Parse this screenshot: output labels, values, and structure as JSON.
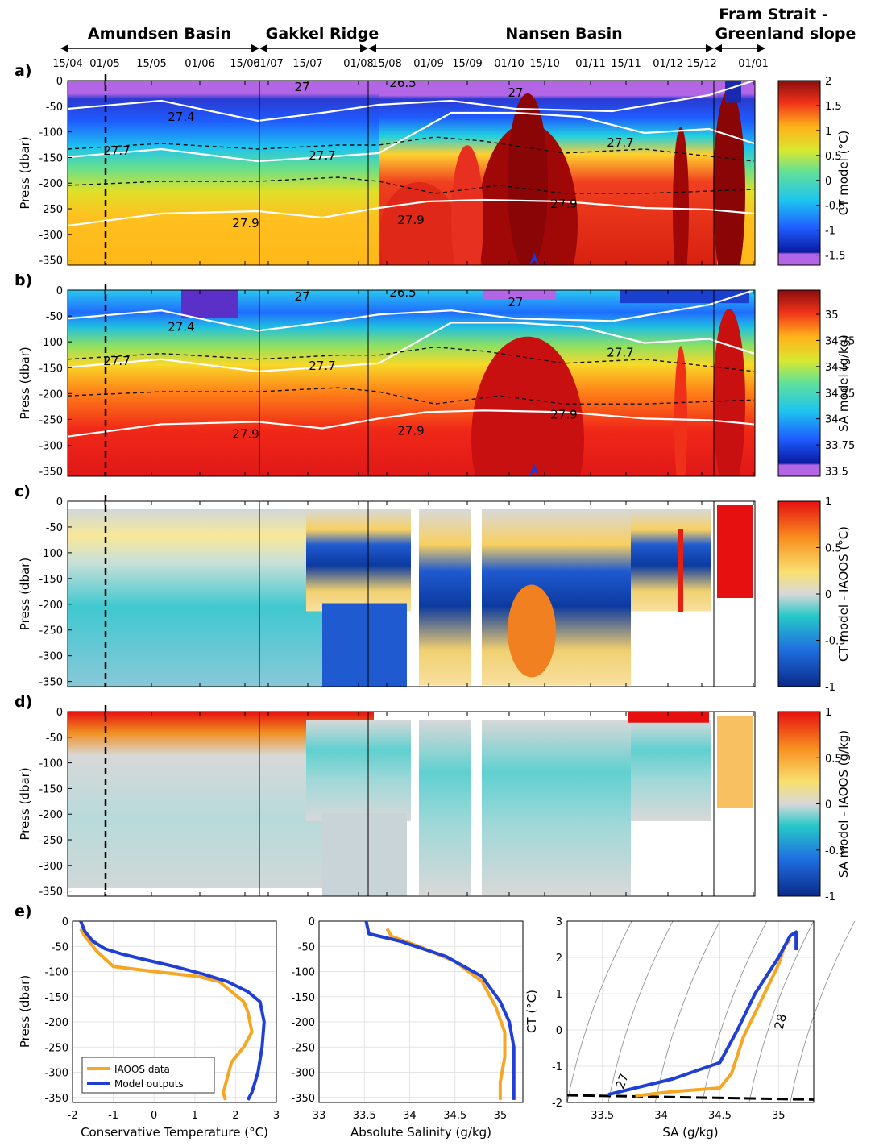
{
  "regions": [
    {
      "label": "Amundsen Basin"
    },
    {
      "label": "Gakkel Ridge"
    },
    {
      "label": "Nansen Basin"
    },
    {
      "label": "Fram Strait -\nGreenland slope"
    }
  ],
  "dates": [
    "15/04",
    "01/05",
    "15/05",
    "01/06",
    "15/06",
    "01/07",
    "15/07",
    "01/08",
    "15/08",
    "01/09",
    "15/09",
    "01/10",
    "15/10",
    "01/11",
    "15/11",
    "01/12",
    "15/12",
    "01/01"
  ],
  "section_yticks": [
    "0",
    "-50",
    "-100",
    "-150",
    "-200",
    "-250",
    "-300",
    "-350"
  ],
  "panels": [
    {
      "letter": "a)",
      "ylabel": "Press (dbar)",
      "cblabel": "CT model (°C)",
      "cbticks": [
        "2",
        "1.5",
        "1",
        "0.5",
        "0",
        "-0.5",
        "-1",
        "-1.5"
      ],
      "scheme": "jet-purple"
    },
    {
      "letter": "b)",
      "ylabel": "Press (dbar)",
      "cblabel": "SA model (g/kg)",
      "cbticks": [
        "35",
        "34.75",
        "34.5",
        "34.25",
        "34",
        "33.75",
        "33.5"
      ],
      "scheme": "jet-purple"
    },
    {
      "letter": "c)",
      "ylabel": "Press (dbar)",
      "cblabel": "CT model - IAOOS (°C)",
      "cbticks": [
        "1",
        "0.5",
        "0",
        "-0.5",
        "-1"
      ],
      "scheme": "diverging"
    },
    {
      "letter": "d)",
      "ylabel": "Press (dbar)",
      "cblabel": "SA model - IAOOS (g/kg)",
      "cbticks": [
        "1",
        "0.5",
        "0",
        "-0.5",
        "-1"
      ],
      "scheme": "diverging"
    }
  ],
  "contour_labels_a": [
    "27",
    "26.5",
    "27.4",
    "27.7",
    "27.9"
  ],
  "contour_labels_b": [
    "27",
    "26.5",
    "27.4",
    "27.7",
    "27.9"
  ],
  "panel_e": {
    "letter": "e)",
    "legend": [
      {
        "name": "IAOOS data",
        "color": "#f5a623"
      },
      {
        "name": "Model outputs",
        "color": "#1f3fd6"
      }
    ],
    "p1": {
      "xlabel": "Conservative Temperature (°C)",
      "ylabel": "Press (dbar)",
      "xticks": [
        "-2",
        "-1",
        "0",
        "1",
        "2",
        "3"
      ],
      "yticks": [
        "0",
        "-50",
        "-100",
        "-150",
        "-200",
        "-250",
        "-300",
        "-350"
      ]
    },
    "p2": {
      "xlabel": "Absolute Salinity (g/kg)",
      "xticks": [
        "33",
        "33.5",
        "34",
        "34.5",
        "35"
      ],
      "yticks": [
        "0",
        "-50",
        "-100",
        "-150",
        "-200",
        "-250",
        "-300",
        "-350"
      ]
    },
    "p3": {
      "xlabel": "SA (g/kg)",
      "ylabel": "CT (°C)",
      "xticks": [
        "33.5",
        "34",
        "34.5",
        "35"
      ],
      "yticks": [
        "3",
        "2",
        "1",
        "0",
        "-1",
        "-2"
      ],
      "isopycnal_labels": [
        "27",
        "28"
      ]
    }
  },
  "chart_data": [
    {
      "type": "heatmap",
      "title": "",
      "ylabel": "Press (dbar)",
      "colorbar_label": "CT model (°C)",
      "zlim": [
        -1.75,
        2
      ],
      "ylim": [
        -360,
        0
      ],
      "x": [
        "15/04",
        "01/05",
        "15/05",
        "01/06",
        "15/06",
        "01/07",
        "15/07",
        "01/08",
        "15/08",
        "01/09",
        "15/09",
        "01/10",
        "15/10",
        "01/11",
        "15/11",
        "01/12",
        "15/12",
        "01/01"
      ]
    },
    {
      "type": "heatmap",
      "title": "",
      "ylabel": "Press (dbar)",
      "colorbar_label": "SA model (g/kg)",
      "zlim": [
        33.4,
        35.2
      ],
      "ylim": [
        -360,
        0
      ]
    },
    {
      "type": "heatmap",
      "title": "",
      "ylabel": "Press (dbar)",
      "colorbar_label": "CT model - IAOOS (°C)",
      "zlim": [
        -1,
        1
      ],
      "ylim": [
        -360,
        0
      ]
    },
    {
      "type": "heatmap",
      "title": "",
      "ylabel": "Press (dbar)",
      "colorbar_label": "SA model - IAOOS (g/kg)",
      "zlim": [
        -1,
        1
      ],
      "ylim": [
        -360,
        0
      ]
    },
    {
      "type": "line",
      "xlabel": "Conservative Temperature (°C)",
      "ylabel": "Press (dbar)",
      "xlim": [
        -2,
        3
      ],
      "ylim": [
        -360,
        0
      ],
      "series": [
        {
          "name": "IAOOS data",
          "x": [
            -1.8,
            -1.7,
            -1.55,
            -1.4,
            -1.2,
            -1.0,
            0.0,
            1.1,
            1.6,
            1.9,
            2.2,
            2.3,
            2.4,
            2.2,
            1.9,
            1.8,
            1.7,
            1.75
          ],
          "y": [
            -15,
            -30,
            -45,
            -60,
            -75,
            -90,
            -100,
            -110,
            -120,
            -140,
            -160,
            -180,
            -220,
            -250,
            -280,
            -310,
            -340,
            -355
          ]
        },
        {
          "name": "Model outputs",
          "x": [
            -1.8,
            -1.7,
            -1.5,
            -1.2,
            -0.8,
            -0.3,
            0.5,
            1.2,
            1.8,
            2.3,
            2.6,
            2.7,
            2.65,
            2.55,
            2.4,
            2.3
          ],
          "y": [
            0,
            -20,
            -40,
            -55,
            -65,
            -75,
            -90,
            -105,
            -120,
            -140,
            -160,
            -200,
            -250,
            -300,
            -340,
            -355
          ]
        }
      ]
    },
    {
      "type": "line",
      "xlabel": "Absolute Salinity (g/kg)",
      "xlim": [
        33,
        35.25
      ],
      "ylim": [
        -360,
        0
      ],
      "series": [
        {
          "name": "IAOOS data",
          "x": [
            33.75,
            33.8,
            34.1,
            34.5,
            34.8,
            34.95,
            35.05,
            35.05,
            35.0,
            35.0
          ],
          "y": [
            -15,
            -30,
            -50,
            -80,
            -120,
            -170,
            -220,
            -270,
            -320,
            -355
          ]
        },
        {
          "name": "Model outputs",
          "x": [
            33.52,
            33.55,
            33.9,
            34.4,
            34.8,
            35.0,
            35.1,
            35.15,
            35.15,
            35.15
          ],
          "y": [
            0,
            -25,
            -40,
            -70,
            -110,
            -160,
            -200,
            -250,
            -300,
            -355
          ]
        }
      ]
    },
    {
      "type": "scatter",
      "xlabel": "SA (g/kg)",
      "ylabel": "CT (°C)",
      "xlim": [
        33.2,
        35.3
      ],
      "ylim": [
        -2,
        3
      ],
      "series": [
        {
          "name": "IAOOS data",
          "x": [
            33.78,
            34.1,
            34.5,
            34.6,
            34.7,
            34.85,
            35.0,
            35.05,
            35.1
          ],
          "y": [
            -1.82,
            -1.7,
            -1.6,
            -1.2,
            -0.2,
            0.8,
            1.8,
            2.3,
            2.5
          ]
        },
        {
          "name": "Model outputs",
          "x": [
            33.55,
            34.1,
            34.5,
            34.65,
            34.8,
            35.0,
            35.1,
            35.15,
            35.15
          ],
          "y": [
            -1.78,
            -1.35,
            -0.9,
            0.0,
            1.0,
            2.0,
            2.6,
            2.7,
            2.2
          ]
        }
      ]
    }
  ]
}
